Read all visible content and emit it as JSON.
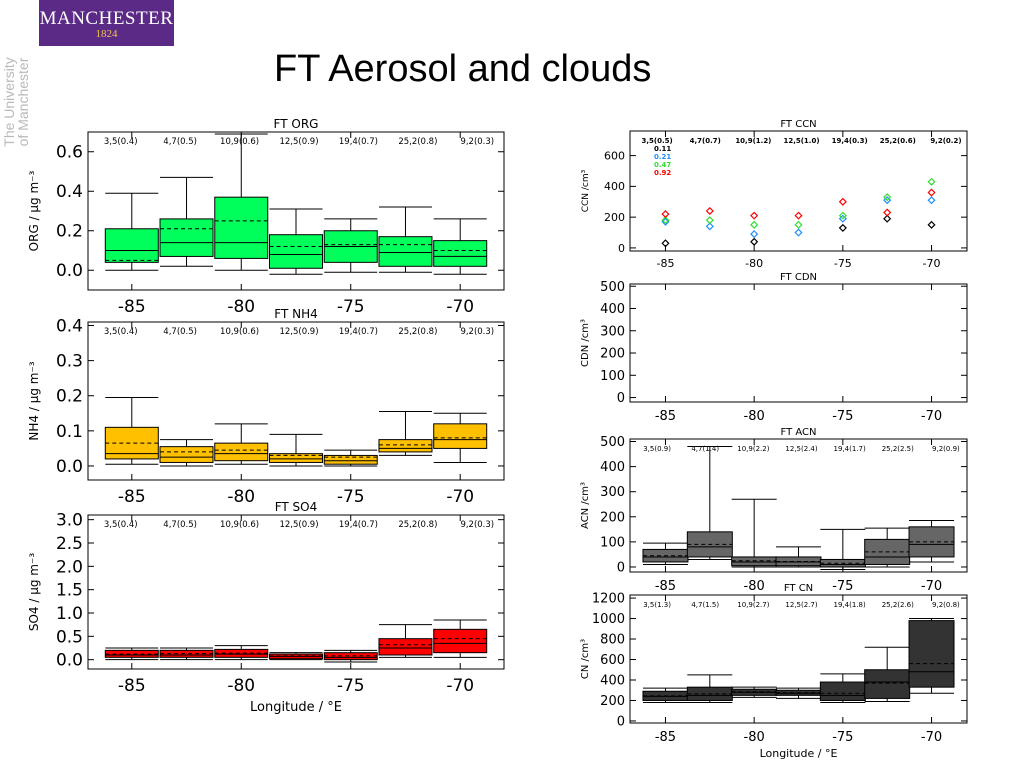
{
  "header": {
    "logo_name": "MANCHESTER",
    "logo_year": "1824",
    "university_line1": "The University",
    "university_line2": "of Manchester",
    "title": "FT Aerosol and clouds"
  },
  "colors": {
    "org": "#00ff5a",
    "nh4": "#ffc000",
    "so4": "#ff0000",
    "acn": "#666666",
    "cn": "#333333"
  },
  "chart_data": [
    {
      "id": "org",
      "type": "box",
      "title": "FT ORG",
      "ylabel": "ORG / µg m⁻³",
      "xlabel": "",
      "xlim": [
        -87,
        -68
      ],
      "ylim": [
        -0.1,
        0.7
      ],
      "yticks": [
        0.0,
        0.2,
        0.4,
        0.6
      ],
      "yfmt": 1,
      "xticks": [
        -85,
        -80,
        -75,
        -70
      ],
      "counts": [
        "3,5(0.4)",
        "4,7(0.5)",
        "10,9(0.6)",
        "12,5(0.9)",
        "19,4(0.7)",
        "25,2(0.8)",
        "9,2(0.3)"
      ],
      "boxes": [
        {
          "x": -85.0,
          "wl": 0.0,
          "q1": 0.04,
          "med": 0.1,
          "q3": 0.21,
          "wh": 0.39,
          "mean": 0.05
        },
        {
          "x": -82.5,
          "wl": 0.02,
          "q1": 0.07,
          "med": 0.14,
          "q3": 0.26,
          "wh": 0.47,
          "mean": 0.21
        },
        {
          "x": -80.0,
          "wl": 0.0,
          "q1": 0.06,
          "med": 0.14,
          "q3": 0.37,
          "wh": 0.69,
          "mean": 0.25
        },
        {
          "x": -77.5,
          "wl": -0.02,
          "q1": 0.01,
          "med": 0.08,
          "q3": 0.18,
          "wh": 0.31,
          "mean": 0.12
        },
        {
          "x": -75.0,
          "wl": -0.01,
          "q1": 0.04,
          "med": 0.12,
          "q3": 0.2,
          "wh": 0.26,
          "mean": 0.13
        },
        {
          "x": -72.5,
          "wl": -0.01,
          "q1": 0.02,
          "med": 0.09,
          "q3": 0.17,
          "wh": 0.32,
          "mean": 0.13
        },
        {
          "x": -70.0,
          "wl": -0.02,
          "q1": 0.02,
          "med": 0.07,
          "q3": 0.15,
          "wh": 0.26,
          "mean": 0.1
        }
      ]
    },
    {
      "id": "nh4",
      "type": "box",
      "title": "FT NH4",
      "ylabel": "NH4 / µg m⁻³",
      "xlabel": "",
      "xlim": [
        -87,
        -68
      ],
      "ylim": [
        -0.04,
        0.41
      ],
      "yticks": [
        0.0,
        0.1,
        0.2,
        0.3,
        0.4
      ],
      "yfmt": 1,
      "xticks": [
        -85,
        -80,
        -75,
        -70
      ],
      "counts": [
        "3,5(0.4)",
        "4,7(0.5)",
        "10,9(0.6)",
        "12,5(0.9)",
        "19,4(0.7)",
        "25,2(0.8)",
        "9,2(0.3)"
      ],
      "boxes": [
        {
          "x": -85.0,
          "wl": 0.005,
          "q1": 0.02,
          "med": 0.035,
          "q3": 0.11,
          "wh": 0.195,
          "mean": 0.065
        },
        {
          "x": -82.5,
          "wl": 0.0,
          "q1": 0.01,
          "med": 0.025,
          "q3": 0.055,
          "wh": 0.075,
          "mean": 0.04
        },
        {
          "x": -80.0,
          "wl": 0.005,
          "q1": 0.015,
          "med": 0.035,
          "q3": 0.065,
          "wh": 0.12,
          "mean": 0.045
        },
        {
          "x": -77.5,
          "wl": 0.0,
          "q1": 0.01,
          "med": 0.02,
          "q3": 0.035,
          "wh": 0.09,
          "mean": 0.03
        },
        {
          "x": -75.0,
          "wl": 0.0,
          "q1": 0.005,
          "med": 0.015,
          "q3": 0.03,
          "wh": 0.045,
          "mean": 0.025
        },
        {
          "x": -72.5,
          "wl": 0.03,
          "q1": 0.04,
          "med": 0.05,
          "q3": 0.075,
          "wh": 0.155,
          "mean": 0.06
        },
        {
          "x": -70.0,
          "wl": 0.01,
          "q1": 0.05,
          "med": 0.075,
          "q3": 0.12,
          "wh": 0.15,
          "mean": 0.08
        }
      ]
    },
    {
      "id": "so4",
      "type": "box",
      "title": "FT SO4",
      "ylabel": "SO4 / µg m⁻³",
      "xlabel": "Longitude / °E",
      "xlim": [
        -87,
        -68
      ],
      "ylim": [
        -0.2,
        3.1
      ],
      "yticks": [
        0.0,
        0.5,
        1.0,
        1.5,
        2.0,
        2.5,
        3.0
      ],
      "yfmt": 1,
      "xticks": [
        -85,
        -80,
        -75,
        -70
      ],
      "counts": [
        "3,5(0.4)",
        "4,7(0.5)",
        "10,9(0.6)",
        "12,5(0.9)",
        "19,4(0.7)",
        "25,2(0.8)",
        "9,2(0.3)"
      ],
      "boxes": [
        {
          "x": -85.0,
          "wl": 0.0,
          "q1": 0.05,
          "med": 0.1,
          "q3": 0.2,
          "wh": 0.25,
          "mean": 0.12
        },
        {
          "x": -82.5,
          "wl": 0.0,
          "q1": 0.05,
          "med": 0.1,
          "q3": 0.2,
          "wh": 0.25,
          "mean": 0.13
        },
        {
          "x": -80.0,
          "wl": 0.0,
          "q1": 0.05,
          "med": 0.12,
          "q3": 0.22,
          "wh": 0.3,
          "mean": 0.14
        },
        {
          "x": -77.5,
          "wl": 0.0,
          "q1": 0.02,
          "med": 0.07,
          "q3": 0.12,
          "wh": 0.15,
          "mean": 0.08
        },
        {
          "x": -75.0,
          "wl": -0.05,
          "q1": 0.0,
          "med": 0.05,
          "q3": 0.15,
          "wh": 0.2,
          "mean": 0.08
        },
        {
          "x": -72.5,
          "wl": 0.05,
          "q1": 0.1,
          "med": 0.25,
          "q3": 0.45,
          "wh": 0.75,
          "mean": 0.32
        },
        {
          "x": -70.0,
          "wl": 0.05,
          "q1": 0.15,
          "med": 0.35,
          "q3": 0.65,
          "wh": 0.85,
          "mean": 0.45
        }
      ]
    },
    {
      "id": "ccn",
      "type": "scatter",
      "title": "FT CCN",
      "ylabel": "CCN /cm³",
      "xlabel": "",
      "xlim": [
        -87,
        -68
      ],
      "ylim": [
        -20,
        760
      ],
      "yticks": [
        0,
        200,
        400,
        600
      ],
      "yfmt": 0,
      "xticks": [
        -85,
        -80,
        -75,
        -70
      ],
      "counts": [
        "3,5(0.5)",
        "4,7(0.7)",
        "10,9(1.2)",
        "12,5(1.0)",
        "19,4(0.3)",
        "25,2(0.6)",
        "9,2(0.2)"
      ],
      "legend": [
        {
          "label": "0.11",
          "color": "#000000"
        },
        {
          "label": "0.21",
          "color": "#1f8fff"
        },
        {
          "label": "0.47",
          "color": "#33dd33"
        },
        {
          "label": "0.92",
          "color": "#ff0000"
        }
      ],
      "series": [
        {
          "name": "0.11",
          "color": "#000000",
          "x": [
            -85.0,
            -80.0,
            -75.0,
            -72.5,
            -70.0
          ],
          "y": [
            30,
            40,
            130,
            190,
            150
          ]
        },
        {
          "name": "0.21",
          "color": "#1f8fff",
          "x": [
            -85.0,
            -82.5,
            -80.0,
            -77.5,
            -75.0,
            -72.5,
            -70.0
          ],
          "y": [
            170,
            140,
            90,
            100,
            190,
            310,
            310
          ]
        },
        {
          "name": "0.47",
          "color": "#33dd33",
          "x": [
            -85.0,
            -82.5,
            -80.0,
            -77.5,
            -75.0,
            -72.5,
            -70.0
          ],
          "y": [
            180,
            180,
            150,
            150,
            210,
            330,
            430
          ]
        },
        {
          "name": "0.92",
          "color": "#ff0000",
          "x": [
            -85.0,
            -82.5,
            -80.0,
            -77.5,
            -75.0,
            -72.5,
            -70.0
          ],
          "y": [
            220,
            240,
            210,
            210,
            300,
            230,
            360
          ]
        }
      ]
    },
    {
      "id": "cdn",
      "type": "box",
      "title": "FT CDN",
      "ylabel": "CDN /cm³",
      "xlabel": "",
      "xlim": [
        -87,
        -68
      ],
      "ylim": [
        -20,
        510
      ],
      "yticks": [
        0,
        100,
        200,
        300,
        400,
        500
      ],
      "yfmt": 0,
      "xticks": [
        -85,
        -80,
        -75,
        -70
      ],
      "counts": [],
      "boxes": []
    },
    {
      "id": "acn",
      "type": "box",
      "title": "FT ACN",
      "ylabel": "ACN /cm³",
      "xlabel": "",
      "xlim": [
        -87,
        -68
      ],
      "ylim": [
        -20,
        510
      ],
      "yticks": [
        0,
        100,
        200,
        300,
        400,
        500
      ],
      "yfmt": 0,
      "xticks": [
        -85,
        -80,
        -75,
        -70
      ],
      "counts": [
        "3,5(0.9)",
        "4,7(1.4)",
        "10,9(2.2)",
        "12,5(2.4)",
        "19,4(1.7)",
        "25,2(2.5)",
        "9,2(0.9)"
      ],
      "boxes": [
        {
          "x": -85.0,
          "wl": 10,
          "q1": 20,
          "med": 40,
          "q3": 70,
          "wh": 95,
          "mean": 45
        },
        {
          "x": -82.5,
          "wl": 30,
          "q1": 40,
          "med": 80,
          "q3": 140,
          "wh": 480,
          "mean": 90
        },
        {
          "x": -80.0,
          "wl": 0,
          "q1": 5,
          "med": 20,
          "q3": 40,
          "wh": 270,
          "mean": 25
        },
        {
          "x": -77.5,
          "wl": 0,
          "q1": 5,
          "med": 20,
          "q3": 40,
          "wh": 80,
          "mean": 22
        },
        {
          "x": -75.0,
          "wl": -10,
          "q1": 0,
          "med": 10,
          "q3": 30,
          "wh": 150,
          "mean": 15
        },
        {
          "x": -72.5,
          "wl": 0,
          "q1": 10,
          "med": 40,
          "q3": 110,
          "wh": 155,
          "mean": 60
        },
        {
          "x": -70.0,
          "wl": 20,
          "q1": 40,
          "med": 90,
          "q3": 160,
          "wh": 185,
          "mean": 100
        }
      ]
    },
    {
      "id": "cn",
      "type": "box",
      "title": "FT CN",
      "ylabel": "CN /cm³",
      "xlabel": "Longitude / °E",
      "xlim": [
        -87,
        -68
      ],
      "ylim": [
        -20,
        1230
      ],
      "yticks": [
        0,
        200,
        400,
        600,
        800,
        1000,
        1200
      ],
      "yfmt": 0,
      "xticks": [
        -85,
        -80,
        -75,
        -70
      ],
      "counts": [
        "3,5(1.3)",
        "4,7(1.5)",
        "10,9(2.7)",
        "12,5(2.7)",
        "19,4(1.8)",
        "25,2(2.6)",
        "9,2(0.8)"
      ],
      "boxes": [
        {
          "x": -85.0,
          "wl": 180,
          "q1": 200,
          "med": 240,
          "q3": 290,
          "wh": 320,
          "mean": 245
        },
        {
          "x": -82.5,
          "wl": 180,
          "q1": 200,
          "med": 250,
          "q3": 330,
          "wh": 450,
          "mean": 265
        },
        {
          "x": -80.0,
          "wl": 230,
          "q1": 250,
          "med": 280,
          "q3": 310,
          "wh": 330,
          "mean": 285
        },
        {
          "x": -77.5,
          "wl": 220,
          "q1": 250,
          "med": 270,
          "q3": 300,
          "wh": 320,
          "mean": 275
        },
        {
          "x": -75.0,
          "wl": 180,
          "q1": 200,
          "med": 250,
          "q3": 380,
          "wh": 460,
          "mean": 270
        },
        {
          "x": -72.5,
          "wl": 190,
          "q1": 220,
          "med": 380,
          "q3": 500,
          "wh": 720,
          "mean": 370
        },
        {
          "x": -70.0,
          "wl": 270,
          "q1": 330,
          "med": 480,
          "q3": 980,
          "wh": 1000,
          "mean": 560
        }
      ]
    }
  ]
}
